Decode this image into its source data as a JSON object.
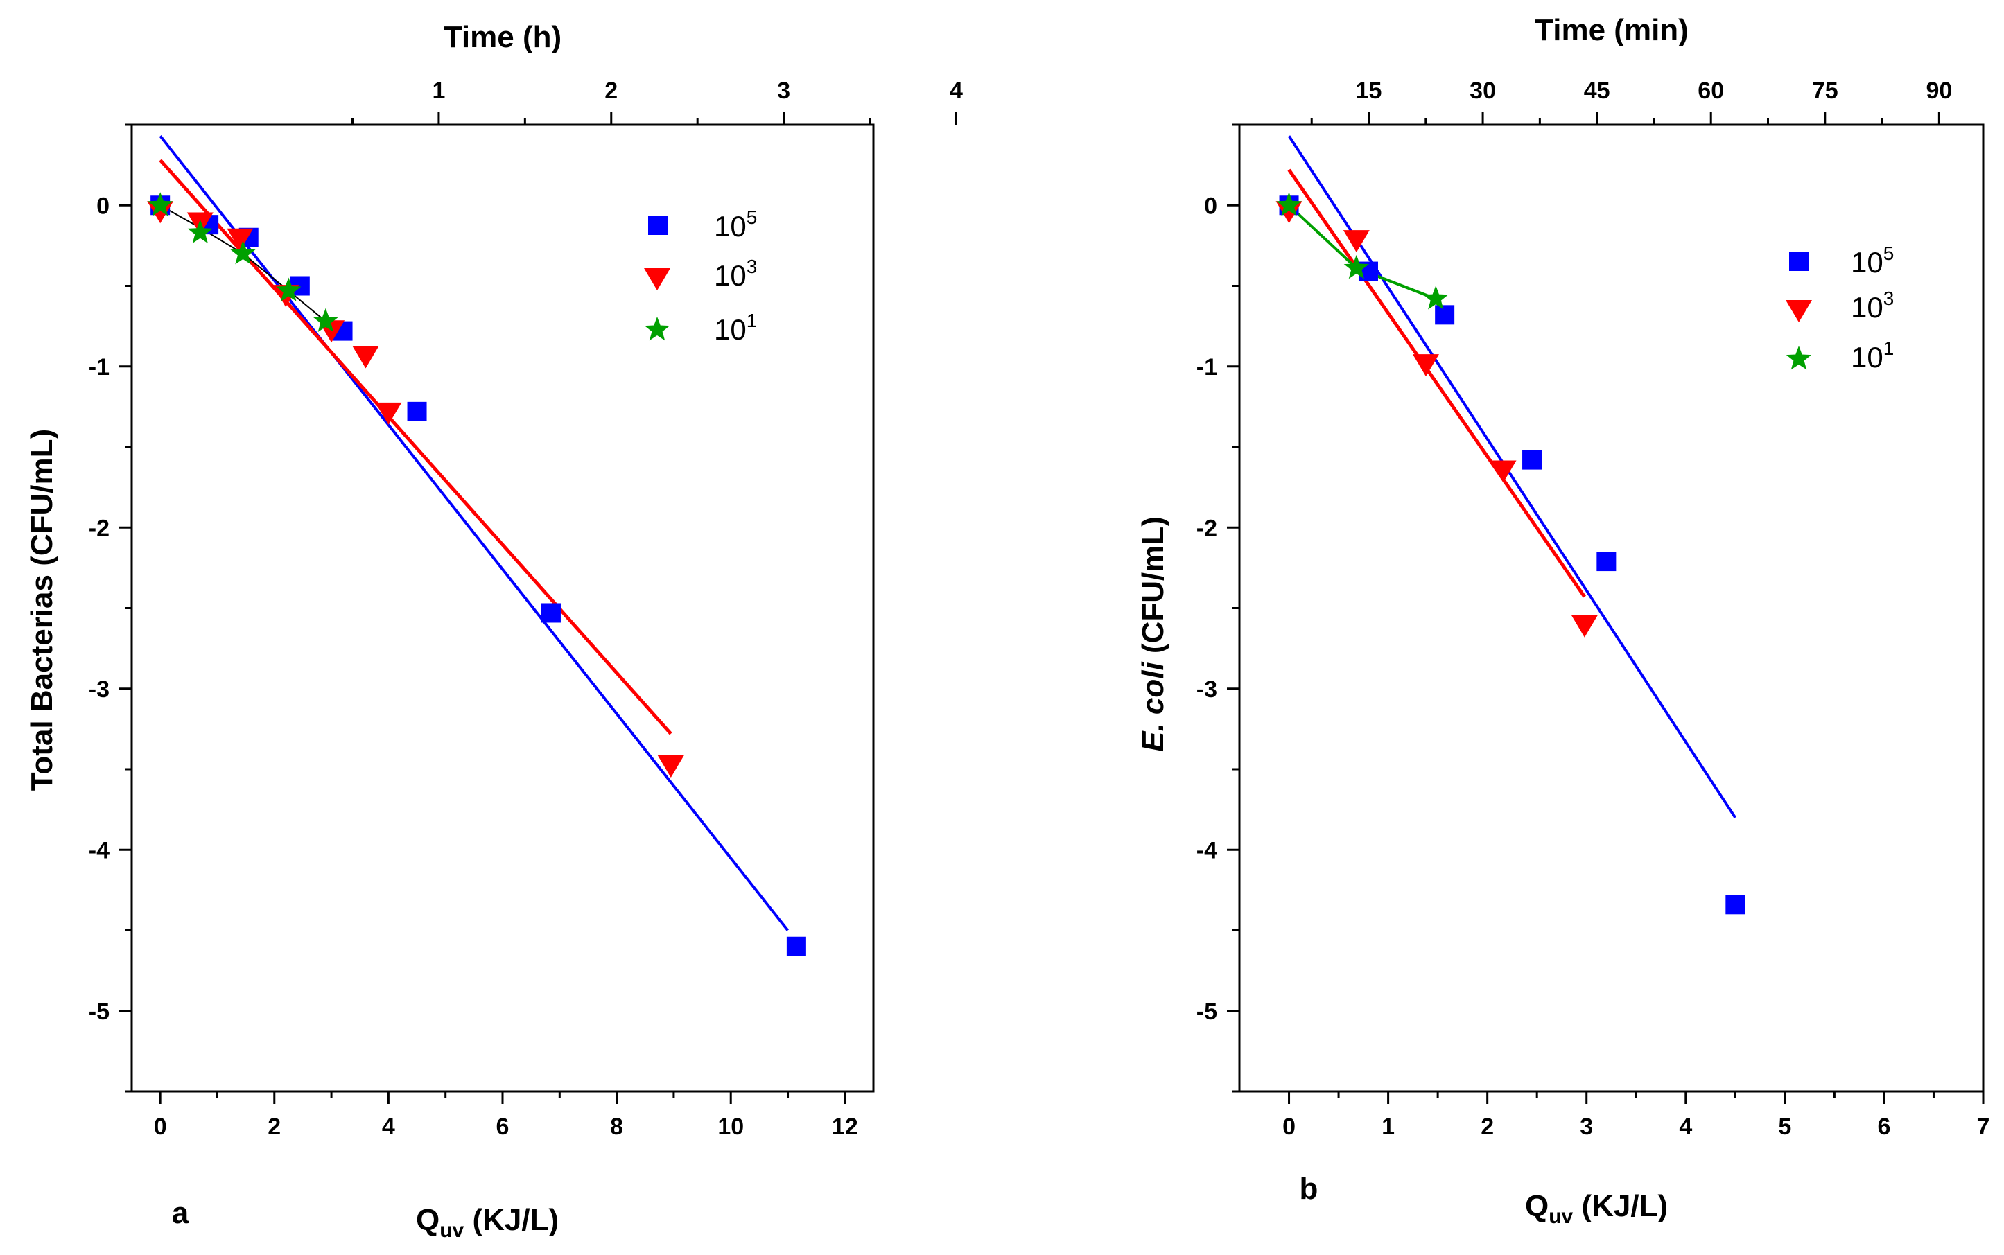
{
  "chart_data": [
    {
      "panel": "a",
      "type": "scatter",
      "xlabel_main": "Q",
      "xlabel_sub": "uv",
      "xlabel_rest": " (KJ/L)",
      "ylabel": "Total Bacterias (CFU/mL)",
      "top_xlabel": "Time (h)",
      "xlim": [
        -0.5,
        12.5
      ],
      "ylim": [
        -5.5,
        0.5
      ],
      "xticks": [
        0,
        2,
        4,
        6,
        8,
        10,
        12
      ],
      "xticklabels": [
        "0",
        "2",
        "4",
        "6",
        "8",
        "10",
        "12"
      ],
      "yticks": [
        0,
        -1,
        -2,
        -3,
        -4,
        -5
      ],
      "yticklabels": [
        "0",
        "-1",
        "-2",
        "-3",
        "-4",
        "-5"
      ],
      "top_xlim": [
        -0.78,
        3.52
      ],
      "top_xticks": [
        1,
        2,
        3,
        4
      ],
      "top_xticklabels": [
        "1",
        "2",
        "3",
        "4"
      ],
      "legend": [
        "10",
        "10",
        "10"
      ],
      "legend_exp": [
        "5",
        "3",
        "1"
      ],
      "series": [
        {
          "name": "10^5",
          "marker": "square",
          "color": "#0000ff",
          "x": [
            0,
            0.85,
            1.55,
            2.45,
            3.2,
            4.5,
            6.85,
            11.15
          ],
          "y": [
            0,
            -0.12,
            -0.2,
            -0.5,
            -0.78,
            -1.28,
            -2.53,
            -4.6
          ],
          "fit": {
            "x": [
              0,
              11.0
            ],
            "y": [
              0.43,
              -4.5
            ],
            "width": 4
          }
        },
        {
          "name": "10^3",
          "marker": "triangle-down",
          "color": "#ff0000",
          "x": [
            0,
            0.7,
            1.4,
            2.2,
            3.0,
            3.6,
            4.0,
            8.95
          ],
          "y": [
            -0.03,
            -0.1,
            -0.2,
            -0.55,
            -0.77,
            -0.93,
            -1.28,
            -3.47
          ],
          "fit": {
            "x": [
              0,
              8.95
            ],
            "y": [
              0.28,
              -3.28
            ],
            "width": 5
          }
        },
        {
          "name": "10^1",
          "marker": "star",
          "color": "#00a000",
          "x": [
            0,
            0.7,
            1.45,
            2.25,
            2.9
          ],
          "y": [
            0,
            -0.17,
            -0.3,
            -0.53,
            -0.72
          ],
          "fit": {
            "x": [
              0,
              0.7,
              1.45,
              2.25,
              2.9
            ],
            "y": [
              0,
              -0.14,
              -0.3,
              -0.53,
              -0.72
            ],
            "width": 2,
            "color": "#000000"
          }
        }
      ]
    },
    {
      "panel": "b",
      "type": "scatter",
      "xlabel_main": "Q",
      "xlabel_sub": "uv",
      "xlabel_rest": " (KJ/L)",
      "ylabel_italic": "E. coli",
      "ylabel_rest": " (CFU/mL)",
      "top_xlabel": "Time (min)",
      "xlim": [
        -0.5,
        7.0
      ],
      "ylim": [
        -5.5,
        0.5
      ],
      "xticks": [
        0,
        1,
        2,
        3,
        4,
        5,
        6,
        7
      ],
      "xticklabels": [
        "0",
        "1",
        "2",
        "3",
        "4",
        "5",
        "6",
        "7"
      ],
      "yticks": [
        0,
        -1,
        -2,
        -3,
        -4,
        -5
      ],
      "yticklabels": [
        "0",
        "-1",
        "-2",
        "-3",
        "-4",
        "-5"
      ],
      "top_xlim": [
        -2.0,
        95.8
      ],
      "top_xticks": [
        15,
        30,
        45,
        60,
        75,
        90
      ],
      "top_xticklabels": [
        "15",
        "30",
        "45",
        "60",
        "75",
        "90"
      ],
      "legend": [
        "10",
        "10",
        "10"
      ],
      "legend_exp": [
        "5",
        "3",
        "1"
      ],
      "series": [
        {
          "name": "10^5",
          "marker": "square",
          "color": "#0000ff",
          "x": [
            0,
            0.8,
            1.57,
            2.45,
            3.2,
            4.5
          ],
          "y": [
            0,
            -0.41,
            -0.68,
            -1.58,
            -2.21,
            -4.34
          ],
          "fit": {
            "x": [
              0,
              4.5
            ],
            "y": [
              0.43,
              -3.8
            ],
            "width": 4
          }
        },
        {
          "name": "10^3",
          "marker": "triangle-down",
          "color": "#ff0000",
          "x": [
            0,
            0.68,
            1.38,
            2.16,
            2.98
          ],
          "y": [
            -0.03,
            -0.21,
            -0.98,
            -1.64,
            -2.6
          ],
          "fit": {
            "x": [
              0,
              2.98
            ],
            "y": [
              0.22,
              -2.43
            ],
            "width": 5
          }
        },
        {
          "name": "10^1",
          "marker": "star",
          "color": "#00a000",
          "x": [
            0,
            0.68,
            1.48
          ],
          "y": [
            0,
            -0.39,
            -0.58
          ],
          "fit": {
            "x": [
              0,
              0.68,
              1.48
            ],
            "y": [
              0,
              -0.39,
              -0.58
            ],
            "width": 4,
            "color": "#00a000"
          }
        }
      ]
    }
  ]
}
